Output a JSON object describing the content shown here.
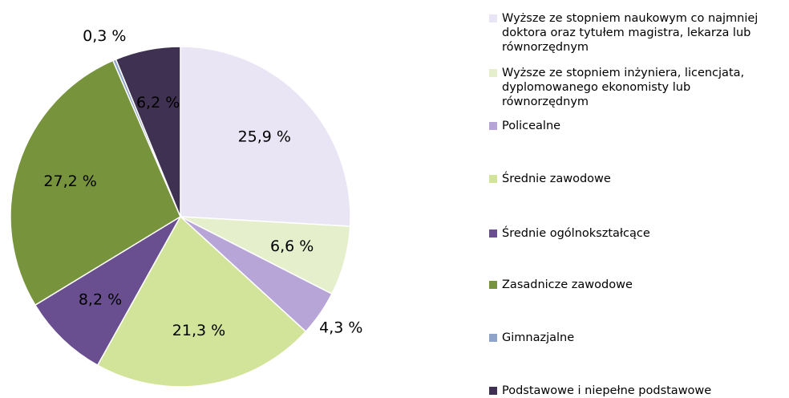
{
  "chart_data": {
    "type": "pie",
    "categories": [
      "Wyższe ze stopniem naukowym co najmniej doktora oraz tytułem magistra, lekarza lub równorzędnym",
      "Wyższe ze stopniem inżyniera, licencjata, dyplomowanego ekonomisty lub równorzędnym",
      "Policealne",
      "Średnie zawodowe",
      "Średnie ogólnokształcące",
      "Zasadnicze zawodowe",
      "Gimnazjalne",
      "Podstawowe i niepełne podstawowe"
    ],
    "values": [
      25.9,
      6.6,
      4.3,
      21.3,
      8.2,
      27.2,
      0.3,
      6.2
    ],
    "value_labels": [
      "25,9 %",
      "6,6 %",
      "4,3 %",
      "21,3 %",
      "8,2 %",
      "27,2 %",
      "0,3 %",
      "6,2 %"
    ],
    "colors": [
      "#e9e5f5",
      "#e5efcb",
      "#b8a5d8",
      "#d2e49a",
      "#6a4f90",
      "#77933c",
      "#8ea4c8",
      "#3f3151"
    ],
    "legend": "right"
  }
}
